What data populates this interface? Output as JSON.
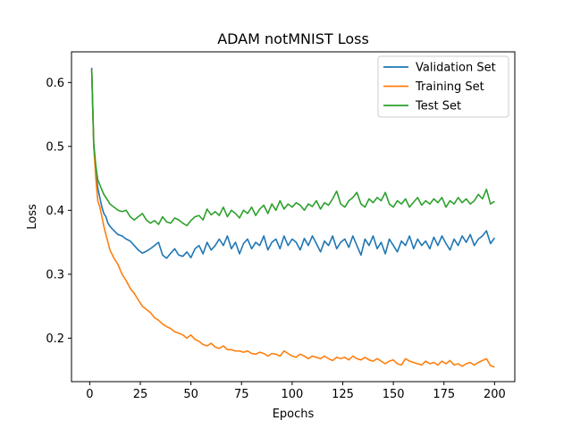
{
  "chart_data": {
    "type": "line",
    "title": "ADAM notMNIST Loss",
    "xlabel": "Epochs",
    "ylabel": "Loss",
    "xlim": [
      -9,
      210
    ],
    "ylim": [
      0.132,
      0.648
    ],
    "xticks": [
      0,
      25,
      50,
      75,
      100,
      125,
      150,
      175,
      200
    ],
    "yticks": [
      0.2,
      0.3,
      0.4,
      0.5,
      0.6
    ],
    "xtick_labels": [
      "0",
      "25",
      "50",
      "75",
      "100",
      "125",
      "150",
      "175",
      "200"
    ],
    "ytick_labels": [
      "0.2",
      "0.3",
      "0.4",
      "0.5",
      "0.6"
    ],
    "grid": false,
    "legend_position": "top-right",
    "series": [
      {
        "name": "Validation Set",
        "color": "#1f77b4",
        "points": [
          [
            1,
            0.623
          ],
          [
            2,
            0.5
          ],
          [
            3,
            0.46
          ],
          [
            4,
            0.435
          ],
          [
            5,
            0.42
          ],
          [
            6,
            0.405
          ],
          [
            7,
            0.395
          ],
          [
            8,
            0.39
          ],
          [
            9,
            0.38
          ],
          [
            10,
            0.375
          ],
          [
            12,
            0.368
          ],
          [
            14,
            0.362
          ],
          [
            16,
            0.36
          ],
          [
            18,
            0.355
          ],
          [
            20,
            0.352
          ],
          [
            22,
            0.345
          ],
          [
            24,
            0.338
          ],
          [
            26,
            0.333
          ],
          [
            28,
            0.336
          ],
          [
            30,
            0.34
          ],
          [
            32,
            0.345
          ],
          [
            34,
            0.35
          ],
          [
            36,
            0.33
          ],
          [
            38,
            0.325
          ],
          [
            40,
            0.333
          ],
          [
            42,
            0.34
          ],
          [
            44,
            0.33
          ],
          [
            46,
            0.328
          ],
          [
            48,
            0.335
          ],
          [
            50,
            0.326
          ],
          [
            52,
            0.34
          ],
          [
            54,
            0.345
          ],
          [
            56,
            0.332
          ],
          [
            58,
            0.35
          ],
          [
            60,
            0.338
          ],
          [
            62,
            0.345
          ],
          [
            64,
            0.355
          ],
          [
            66,
            0.345
          ],
          [
            68,
            0.36
          ],
          [
            70,
            0.34
          ],
          [
            72,
            0.35
          ],
          [
            74,
            0.332
          ],
          [
            76,
            0.348
          ],
          [
            78,
            0.355
          ],
          [
            80,
            0.34
          ],
          [
            82,
            0.35
          ],
          [
            84,
            0.345
          ],
          [
            86,
            0.36
          ],
          [
            88,
            0.338
          ],
          [
            90,
            0.35
          ],
          [
            92,
            0.355
          ],
          [
            94,
            0.34
          ],
          [
            96,
            0.36
          ],
          [
            98,
            0.345
          ],
          [
            100,
            0.355
          ],
          [
            102,
            0.35
          ],
          [
            104,
            0.338
          ],
          [
            106,
            0.356
          ],
          [
            108,
            0.345
          ],
          [
            110,
            0.36
          ],
          [
            112,
            0.348
          ],
          [
            114,
            0.335
          ],
          [
            116,
            0.352
          ],
          [
            118,
            0.345
          ],
          [
            120,
            0.36
          ],
          [
            122,
            0.34
          ],
          [
            124,
            0.35
          ],
          [
            126,
            0.355
          ],
          [
            128,
            0.342
          ],
          [
            130,
            0.36
          ],
          [
            132,
            0.345
          ],
          [
            134,
            0.33
          ],
          [
            136,
            0.355
          ],
          [
            138,
            0.345
          ],
          [
            140,
            0.36
          ],
          [
            142,
            0.34
          ],
          [
            144,
            0.35
          ],
          [
            146,
            0.332
          ],
          [
            148,
            0.355
          ],
          [
            150,
            0.345
          ],
          [
            152,
            0.335
          ],
          [
            154,
            0.352
          ],
          [
            156,
            0.345
          ],
          [
            158,
            0.36
          ],
          [
            160,
            0.34
          ],
          [
            162,
            0.355
          ],
          [
            164,
            0.345
          ],
          [
            166,
            0.352
          ],
          [
            168,
            0.34
          ],
          [
            170,
            0.358
          ],
          [
            172,
            0.345
          ],
          [
            174,
            0.36
          ],
          [
            176,
            0.348
          ],
          [
            178,
            0.338
          ],
          [
            180,
            0.355
          ],
          [
            182,
            0.345
          ],
          [
            184,
            0.36
          ],
          [
            186,
            0.35
          ],
          [
            188,
            0.362
          ],
          [
            190,
            0.345
          ],
          [
            192,
            0.355
          ],
          [
            194,
            0.36
          ],
          [
            196,
            0.368
          ],
          [
            198,
            0.348
          ],
          [
            200,
            0.357
          ]
        ]
      },
      {
        "name": "Training Set",
        "color": "#ff7f0e",
        "points": [
          [
            1,
            0.62
          ],
          [
            2,
            0.5
          ],
          [
            3,
            0.45
          ],
          [
            4,
            0.415
          ],
          [
            5,
            0.405
          ],
          [
            6,
            0.39
          ],
          [
            7,
            0.375
          ],
          [
            8,
            0.362
          ],
          [
            9,
            0.35
          ],
          [
            10,
            0.338
          ],
          [
            12,
            0.325
          ],
          [
            14,
            0.315
          ],
          [
            16,
            0.3
          ],
          [
            18,
            0.29
          ],
          [
            20,
            0.278
          ],
          [
            22,
            0.27
          ],
          [
            24,
            0.26
          ],
          [
            26,
            0.25
          ],
          [
            28,
            0.245
          ],
          [
            30,
            0.24
          ],
          [
            32,
            0.232
          ],
          [
            34,
            0.228
          ],
          [
            36,
            0.222
          ],
          [
            38,
            0.218
          ],
          [
            40,
            0.215
          ],
          [
            42,
            0.21
          ],
          [
            44,
            0.208
          ],
          [
            46,
            0.205
          ],
          [
            48,
            0.2
          ],
          [
            50,
            0.205
          ],
          [
            52,
            0.198
          ],
          [
            54,
            0.195
          ],
          [
            56,
            0.19
          ],
          [
            58,
            0.188
          ],
          [
            60,
            0.192
          ],
          [
            62,
            0.186
          ],
          [
            64,
            0.184
          ],
          [
            66,
            0.188
          ],
          [
            68,
            0.182
          ],
          [
            70,
            0.182
          ],
          [
            72,
            0.18
          ],
          [
            74,
            0.18
          ],
          [
            76,
            0.178
          ],
          [
            78,
            0.18
          ],
          [
            80,
            0.176
          ],
          [
            82,
            0.175
          ],
          [
            84,
            0.178
          ],
          [
            86,
            0.176
          ],
          [
            88,
            0.172
          ],
          [
            90,
            0.176
          ],
          [
            92,
            0.175
          ],
          [
            94,
            0.172
          ],
          [
            96,
            0.18
          ],
          [
            98,
            0.176
          ],
          [
            100,
            0.172
          ],
          [
            102,
            0.17
          ],
          [
            104,
            0.175
          ],
          [
            106,
            0.172
          ],
          [
            108,
            0.168
          ],
          [
            110,
            0.172
          ],
          [
            112,
            0.17
          ],
          [
            114,
            0.168
          ],
          [
            116,
            0.172
          ],
          [
            118,
            0.168
          ],
          [
            120,
            0.165
          ],
          [
            122,
            0.17
          ],
          [
            124,
            0.168
          ],
          [
            126,
            0.17
          ],
          [
            128,
            0.166
          ],
          [
            130,
            0.172
          ],
          [
            132,
            0.168
          ],
          [
            134,
            0.166
          ],
          [
            136,
            0.17
          ],
          [
            138,
            0.166
          ],
          [
            140,
            0.164
          ],
          [
            142,
            0.168
          ],
          [
            144,
            0.164
          ],
          [
            146,
            0.16
          ],
          [
            148,
            0.164
          ],
          [
            150,
            0.166
          ],
          [
            152,
            0.16
          ],
          [
            154,
            0.158
          ],
          [
            156,
            0.168
          ],
          [
            158,
            0.164
          ],
          [
            160,
            0.162
          ],
          [
            162,
            0.16
          ],
          [
            164,
            0.158
          ],
          [
            166,
            0.164
          ],
          [
            168,
            0.16
          ],
          [
            170,
            0.162
          ],
          [
            172,
            0.158
          ],
          [
            174,
            0.164
          ],
          [
            176,
            0.16
          ],
          [
            178,
            0.165
          ],
          [
            180,
            0.158
          ],
          [
            182,
            0.16
          ],
          [
            184,
            0.156
          ],
          [
            186,
            0.16
          ],
          [
            188,
            0.162
          ],
          [
            190,
            0.158
          ],
          [
            192,
            0.162
          ],
          [
            194,
            0.165
          ],
          [
            196,
            0.168
          ],
          [
            198,
            0.157
          ],
          [
            200,
            0.155
          ]
        ]
      },
      {
        "name": "Test Set",
        "color": "#2ca02c",
        "points": [
          [
            1,
            0.62
          ],
          [
            2,
            0.505
          ],
          [
            3,
            0.47
          ],
          [
            4,
            0.448
          ],
          [
            5,
            0.44
          ],
          [
            6,
            0.432
          ],
          [
            7,
            0.425
          ],
          [
            8,
            0.42
          ],
          [
            9,
            0.415
          ],
          [
            10,
            0.41
          ],
          [
            12,
            0.405
          ],
          [
            14,
            0.4
          ],
          [
            16,
            0.398
          ],
          [
            18,
            0.4
          ],
          [
            20,
            0.39
          ],
          [
            22,
            0.385
          ],
          [
            24,
            0.39
          ],
          [
            26,
            0.395
          ],
          [
            28,
            0.385
          ],
          [
            30,
            0.38
          ],
          [
            32,
            0.384
          ],
          [
            34,
            0.378
          ],
          [
            36,
            0.39
          ],
          [
            38,
            0.382
          ],
          [
            40,
            0.38
          ],
          [
            42,
            0.388
          ],
          [
            44,
            0.385
          ],
          [
            46,
            0.38
          ],
          [
            48,
            0.376
          ],
          [
            50,
            0.384
          ],
          [
            52,
            0.39
          ],
          [
            54,
            0.392
          ],
          [
            56,
            0.385
          ],
          [
            58,
            0.402
          ],
          [
            60,
            0.393
          ],
          [
            62,
            0.398
          ],
          [
            64,
            0.392
          ],
          [
            66,
            0.405
          ],
          [
            68,
            0.39
          ],
          [
            70,
            0.4
          ],
          [
            72,
            0.395
          ],
          [
            74,
            0.388
          ],
          [
            76,
            0.4
          ],
          [
            78,
            0.395
          ],
          [
            80,
            0.405
          ],
          [
            82,
            0.392
          ],
          [
            84,
            0.402
          ],
          [
            86,
            0.408
          ],
          [
            88,
            0.395
          ],
          [
            90,
            0.41
          ],
          [
            92,
            0.4
          ],
          [
            94,
            0.415
          ],
          [
            96,
            0.402
          ],
          [
            98,
            0.41
          ],
          [
            100,
            0.405
          ],
          [
            102,
            0.412
          ],
          [
            104,
            0.408
          ],
          [
            106,
            0.4
          ],
          [
            108,
            0.41
          ],
          [
            110,
            0.406
          ],
          [
            112,
            0.415
          ],
          [
            114,
            0.402
          ],
          [
            116,
            0.412
          ],
          [
            118,
            0.408
          ],
          [
            120,
            0.418
          ],
          [
            122,
            0.43
          ],
          [
            124,
            0.41
          ],
          [
            126,
            0.405
          ],
          [
            128,
            0.415
          ],
          [
            130,
            0.42
          ],
          [
            132,
            0.428
          ],
          [
            134,
            0.41
          ],
          [
            136,
            0.405
          ],
          [
            138,
            0.418
          ],
          [
            140,
            0.412
          ],
          [
            142,
            0.42
          ],
          [
            144,
            0.415
          ],
          [
            146,
            0.428
          ],
          [
            148,
            0.41
          ],
          [
            150,
            0.405
          ],
          [
            152,
            0.415
          ],
          [
            154,
            0.41
          ],
          [
            156,
            0.418
          ],
          [
            158,
            0.405
          ],
          [
            160,
            0.413
          ],
          [
            162,
            0.42
          ],
          [
            164,
            0.408
          ],
          [
            166,
            0.415
          ],
          [
            168,
            0.41
          ],
          [
            170,
            0.418
          ],
          [
            172,
            0.412
          ],
          [
            174,
            0.42
          ],
          [
            176,
            0.405
          ],
          [
            178,
            0.415
          ],
          [
            180,
            0.41
          ],
          [
            182,
            0.42
          ],
          [
            184,
            0.412
          ],
          [
            186,
            0.418
          ],
          [
            188,
            0.41
          ],
          [
            190,
            0.415
          ],
          [
            192,
            0.425
          ],
          [
            194,
            0.418
          ],
          [
            196,
            0.433
          ],
          [
            198,
            0.41
          ],
          [
            200,
            0.414
          ]
        ]
      }
    ]
  }
}
